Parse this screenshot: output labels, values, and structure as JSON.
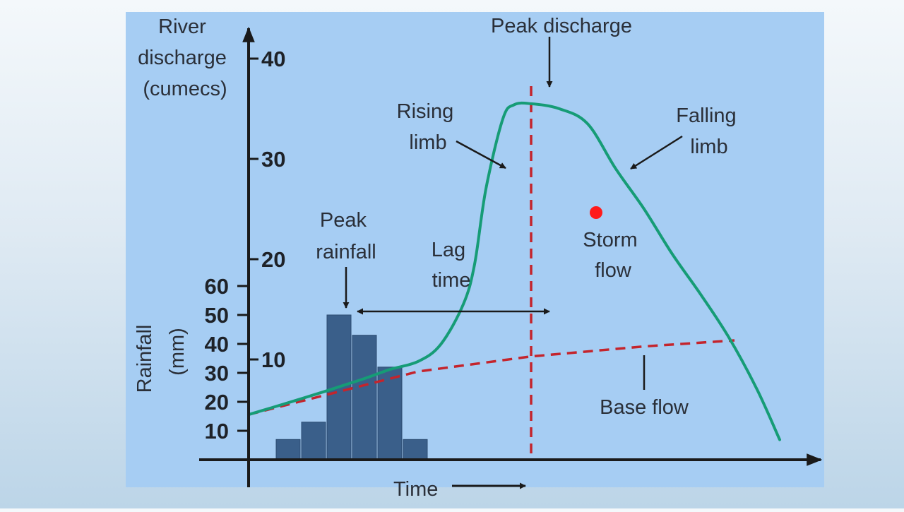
{
  "chart_data": {
    "type": "bar+line",
    "title": "",
    "discharge_axis": {
      "label_lines": [
        "River",
        "discharge",
        "(cumecs)"
      ],
      "ticks": [
        10,
        20,
        30,
        40
      ],
      "range": [
        0,
        44
      ]
    },
    "rainfall_axis": {
      "label_lines": [
        "Rainfall",
        "(mm)"
      ],
      "ticks": [
        10,
        20,
        30,
        40,
        50,
        60
      ],
      "range": [
        0,
        60
      ]
    },
    "x_axis_label": "Time",
    "time_range": [
      0,
      100
    ],
    "rainfall_bars": {
      "time": [
        7,
        11.5,
        16,
        20.5,
        25,
        29.5
      ],
      "values": [
        7,
        13,
        50,
        43,
        32,
        7
      ]
    },
    "hydrograph": {
      "time": [
        0,
        10,
        20,
        25,
        30,
        34,
        38,
        40,
        42,
        45,
        47,
        50,
        55,
        60,
        65,
        70,
        75,
        80,
        85,
        90,
        94
      ],
      "values": [
        4.5,
        6.2,
        8.0,
        9.0,
        9.8,
        11.5,
        15.5,
        19.5,
        27.0,
        34.0,
        35.4,
        35.5,
        35.0,
        33.5,
        29.0,
        25.0,
        20.5,
        16.5,
        12.2,
        7.0,
        2.0
      ]
    },
    "base_flow": {
      "time": [
        0,
        30,
        50,
        70,
        86
      ],
      "values": [
        4.5,
        8.8,
        10.3,
        11.3,
        11.9
      ]
    },
    "peak_discharge_time": 50,
    "peak_rainfall_time": 16,
    "annotations": {
      "peak_discharge": "Peak discharge",
      "rising_limb": [
        "Rising",
        "limb"
      ],
      "falling_limb": [
        "Falling",
        "limb"
      ],
      "peak_rainfall": [
        "Peak",
        "rainfall"
      ],
      "lag_time": [
        "Lag",
        "time"
      ],
      "storm_flow": [
        "Storm",
        "flow"
      ],
      "base_flow": "Base flow"
    },
    "colors": {
      "panel": "#a6cdf3",
      "bars": "#3a5f8a",
      "hydrograph": "#169c76",
      "base_flow": "#c4242c",
      "marker": "#ff1a1a",
      "axis": "#1a1a1a"
    },
    "grid": false
  }
}
